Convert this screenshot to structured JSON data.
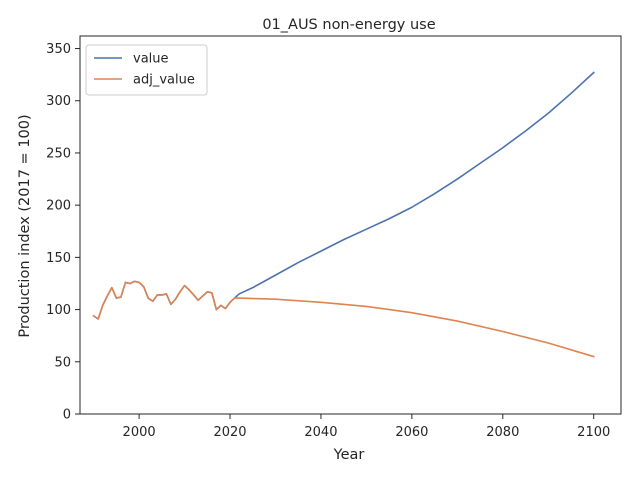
{
  "chart_data": {
    "type": "line",
    "title": "01_AUS non-energy use",
    "xlabel": "Year",
    "ylabel": "Production index (2017 = 100)",
    "xlim": [
      1987,
      2106
    ],
    "ylim": [
      0,
      362
    ],
    "xticks": [
      2000,
      2020,
      2040,
      2060,
      2080,
      2100
    ],
    "yticks": [
      0,
      50,
      100,
      150,
      200,
      250,
      300,
      350
    ],
    "grid": false,
    "legend_position": "top-left",
    "series": [
      {
        "name": "value",
        "color": "#4c72b0",
        "x": [
          1990,
          1991,
          1992,
          1993,
          1994,
          1995,
          1996,
          1997,
          1998,
          1999,
          2000,
          2001,
          2002,
          2003,
          2004,
          2005,
          2006,
          2007,
          2008,
          2009,
          2010,
          2011,
          2012,
          2013,
          2014,
          2015,
          2016,
          2017,
          2018,
          2019,
          2020,
          2021,
          2022,
          2025,
          2030,
          2035,
          2040,
          2045,
          2050,
          2055,
          2060,
          2065,
          2070,
          2075,
          2080,
          2085,
          2090,
          2095,
          2100
        ],
        "y": [
          94,
          91,
          104,
          113,
          121,
          111,
          112,
          126,
          125,
          127,
          126,
          122,
          111,
          108,
          114,
          114,
          115,
          105,
          110,
          117,
          123,
          119,
          114,
          109,
          113,
          117,
          116,
          100,
          104,
          101,
          107,
          111,
          115,
          121,
          133,
          145,
          156,
          167,
          177,
          187,
          198,
          211,
          225,
          240,
          255,
          271,
          288,
          307,
          327
        ]
      },
      {
        "name": "adj_value",
        "color": "#dd8452",
        "x": [
          1990,
          1991,
          1992,
          1993,
          1994,
          1995,
          1996,
          1997,
          1998,
          1999,
          2000,
          2001,
          2002,
          2003,
          2004,
          2005,
          2006,
          2007,
          2008,
          2009,
          2010,
          2011,
          2012,
          2013,
          2014,
          2015,
          2016,
          2017,
          2018,
          2019,
          2020,
          2021,
          2022,
          2030,
          2040,
          2050,
          2060,
          2070,
          2080,
          2090,
          2100
        ],
        "y": [
          94,
          91,
          104,
          113,
          121,
          111,
          112,
          126,
          125,
          127,
          126,
          122,
          111,
          108,
          114,
          114,
          115,
          105,
          110,
          117,
          123,
          119,
          114,
          109,
          113,
          117,
          116,
          100,
          104,
          101,
          107,
          111,
          111,
          110,
          107,
          103,
          97,
          89,
          79,
          68,
          55
        ]
      }
    ]
  }
}
